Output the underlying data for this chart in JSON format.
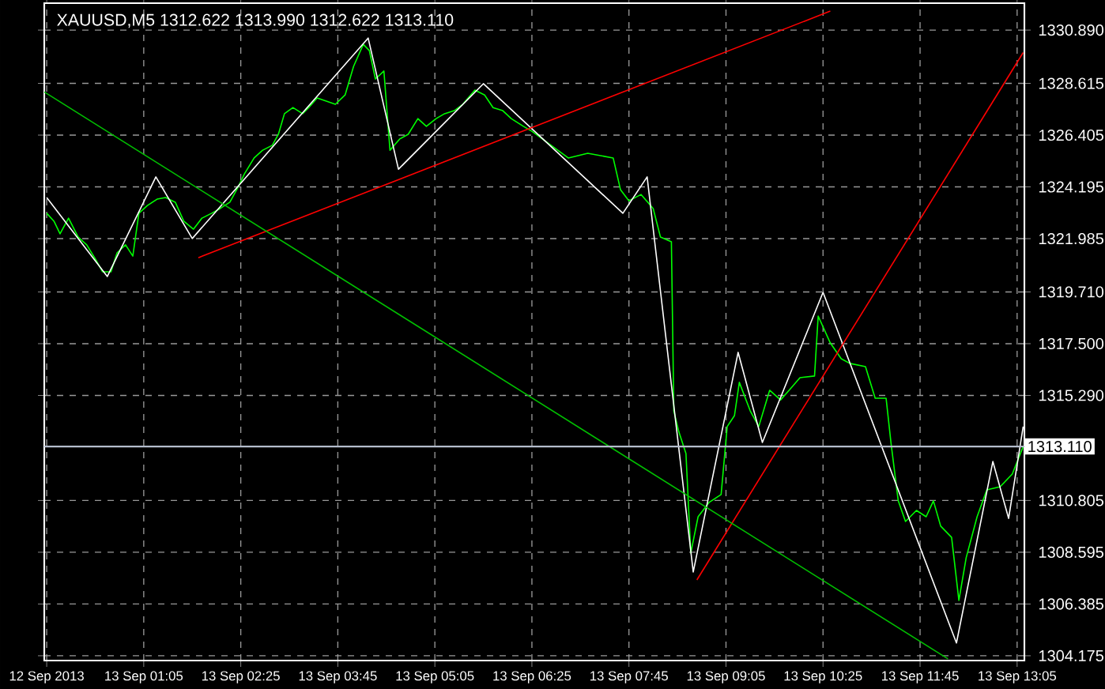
{
  "chart_data": {
    "type": "line",
    "title": "XAUUSD,M5  1312.622 1313.990 1312.622 1313.110",
    "xlim": [
      "2013-09-12T23:43",
      "2013-09-13T13:11"
    ],
    "ylim": [
      1303.97,
      1332.04
    ],
    "xticks": [
      {
        "value": "2013-09-12T23:45",
        "label": "12 Sep 2013"
      },
      {
        "value": "2013-09-13T01:05",
        "label": "13 Sep 01:05"
      },
      {
        "value": "2013-09-13T02:25",
        "label": "13 Sep 02:25"
      },
      {
        "value": "2013-09-13T03:45",
        "label": "13 Sep 03:45"
      },
      {
        "value": "2013-09-13T05:05",
        "label": "13 Sep 05:05"
      },
      {
        "value": "2013-09-13T06:25",
        "label": "13 Sep 06:25"
      },
      {
        "value": "2013-09-13T07:45",
        "label": "13 Sep 07:45"
      },
      {
        "value": "2013-09-13T09:05",
        "label": "13 Sep 09:05"
      },
      {
        "value": "2013-09-13T10:25",
        "label": "13 Sep 10:25"
      },
      {
        "value": "2013-09-13T11:45",
        "label": "13 Sep 11:45"
      },
      {
        "value": "2013-09-13T13:05",
        "label": "13 Sep 13:05"
      }
    ],
    "yticks": [
      {
        "value": 1330.89,
        "label": "1330.890"
      },
      {
        "value": 1328.615,
        "label": "1328.615"
      },
      {
        "value": 1326.405,
        "label": "1326.405"
      },
      {
        "value": 1324.195,
        "label": "1324.195"
      },
      {
        "value": 1321.985,
        "label": "1321.985"
      },
      {
        "value": 1319.71,
        "label": "1319.710"
      },
      {
        "value": 1317.5,
        "label": "1317.500"
      },
      {
        "value": 1315.29,
        "label": "1315.290"
      },
      {
        "value": 1310.805,
        "label": "1310.805"
      },
      {
        "value": 1308.595,
        "label": "1308.595"
      },
      {
        "value": 1306.385,
        "label": "1306.385"
      },
      {
        "value": 1304.175,
        "label": "1304.175"
      }
    ],
    "grid": true,
    "ref_lines": [
      {
        "axis": "y",
        "value": 1313.11,
        "label": "1313.110",
        "color": "#b4bccc"
      }
    ],
    "series": [
      {
        "color": "#00ff00",
        "x": [
          "2013-09-12T23:45",
          "2013-09-12T23:51",
          "2013-09-12T23:56",
          "2013-09-13T00:03",
          "2013-09-13T00:11",
          "2013-09-13T00:18",
          "2013-09-13T00:26",
          "2013-09-13T00:31",
          "2013-09-13T00:38",
          "2013-09-13T00:43",
          "2013-09-13T00:50",
          "2013-09-13T00:56",
          "2013-09-13T01:01",
          "2013-09-13T01:08",
          "2013-09-13T01:16",
          "2013-09-13T01:23",
          "2013-09-13T01:31",
          "2013-09-13T01:38",
          "2013-09-13T01:46",
          "2013-09-13T01:53",
          "2013-09-13T02:01",
          "2013-09-13T02:08",
          "2013-09-13T02:16",
          "2013-09-13T02:23",
          "2013-09-13T02:28",
          "2013-09-13T02:36",
          "2013-09-13T02:43",
          "2013-09-13T02:51",
          "2013-09-13T02:56",
          "2013-09-13T03:01",
          "2013-09-13T03:08",
          "2013-09-13T03:16",
          "2013-09-13T03:21",
          "2013-09-13T03:28",
          "2013-09-13T03:36",
          "2013-09-13T03:43",
          "2013-09-13T03:51",
          "2013-09-13T03:58",
          "2013-09-13T04:06",
          "2013-09-13T04:11",
          "2013-09-13T04:16",
          "2013-09-13T04:23",
          "2013-09-13T04:28",
          "2013-09-13T04:36",
          "2013-09-13T04:43",
          "2013-09-13T04:51",
          "2013-09-13T04:58",
          "2013-09-13T05:06",
          "2013-09-13T05:13",
          "2013-09-13T05:21",
          "2013-09-13T05:28",
          "2013-09-13T05:38",
          "2013-09-13T05:46",
          "2013-09-13T05:53",
          "2013-09-13T06:01",
          "2013-09-13T06:08",
          "2013-09-13T06:18",
          "2013-09-13T06:25",
          "2013-09-13T06:55",
          "2013-09-13T07:11",
          "2013-09-13T07:32",
          "2013-09-13T07:38",
          "2013-09-13T07:45",
          "2013-09-13T07:55",
          "2013-09-13T08:05",
          "2013-09-13T08:11",
          "2013-09-13T08:20",
          "2013-09-13T08:22",
          "2013-09-13T08:26",
          "2013-09-13T08:32",
          "2013-09-13T08:36",
          "2013-09-13T08:42",
          "2013-09-13T08:51",
          "2013-09-13T09:01",
          "2013-09-13T09:06",
          "2013-09-13T09:12",
          "2013-09-13T09:16",
          "2013-09-13T09:25",
          "2013-09-13T09:32",
          "2013-09-13T09:41",
          "2013-09-13T09:50",
          "2013-09-13T09:57",
          "2013-09-13T10:06",
          "2013-09-13T10:18",
          "2013-09-13T10:21",
          "2013-09-13T10:31",
          "2013-09-13T10:40",
          "2013-09-13T10:47",
          "2013-09-13T11:00",
          "2013-09-13T11:08",
          "2013-09-13T11:17",
          "2013-09-13T11:21",
          "2013-09-13T11:27",
          "2013-09-13T11:33",
          "2013-09-13T11:42",
          "2013-09-13T11:50",
          "2013-09-13T11:56",
          "2013-09-13T12:02",
          "2013-09-13T12:11",
          "2013-09-13T12:17",
          "2013-09-13T12:23",
          "2013-09-13T12:32",
          "2013-09-13T12:40",
          "2013-09-13T12:51",
          "2013-09-13T13:01",
          "2013-09-13T13:10"
        ],
        "values": [
          1323.07,
          1322.73,
          1322.19,
          1322.86,
          1322.05,
          1321.72,
          1321.04,
          1320.57,
          1320.57,
          1321.38,
          1321.72,
          1321.24,
          1323.07,
          1323.4,
          1323.67,
          1323.74,
          1323.54,
          1322.73,
          1322.39,
          1322.86,
          1323.07,
          1323.27,
          1323.54,
          1324.21,
          1324.75,
          1325.43,
          1325.76,
          1325.97,
          1326.44,
          1327.32,
          1327.58,
          1327.32,
          1327.58,
          1327.99,
          1327.85,
          1327.72,
          1328.12,
          1329.34,
          1330.28,
          1330.01,
          1328.8,
          1329.14,
          1325.76,
          1326.24,
          1326.44,
          1327.11,
          1326.78,
          1327.11,
          1327.32,
          1327.45,
          1327.72,
          1328.33,
          1328.12,
          1327.58,
          1327.45,
          1327.11,
          1326.78,
          1326.57,
          1325.43,
          1325.63,
          1325.43,
          1324.08,
          1323.6,
          1323.87,
          1323.27,
          1322.05,
          1321.85,
          1314.63,
          1313.76,
          1312.81,
          1308.56,
          1310.11,
          1310.72,
          1311.06,
          1313.96,
          1314.43,
          1315.85,
          1314.63,
          1313.96,
          1315.51,
          1315.1,
          1315.51,
          1316.05,
          1316.12,
          1318.68,
          1317.53,
          1316.86,
          1316.66,
          1316.52,
          1315.17,
          1315.17,
          1313.28,
          1310.79,
          1309.91,
          1310.38,
          1310.11,
          1310.79,
          1309.71,
          1309.23,
          1306.54,
          1308.36,
          1310.11,
          1311.26,
          1311.39,
          1311.93,
          1313.11
        ]
      },
      {
        "color": "#ffffff",
        "x": [
          "2013-09-12T23:45",
          "2013-09-13T00:35",
          "2013-09-13T01:15",
          "2013-09-13T01:45",
          "2013-09-13T04:10",
          "2013-09-13T04:35",
          "2013-09-13T05:45",
          "2013-09-13T07:40",
          "2013-09-13T08:00",
          "2013-09-13T08:38",
          "2013-09-13T09:15",
          "2013-09-13T09:35",
          "2013-09-13T10:25",
          "2013-09-13T12:15",
          "2013-09-13T12:45",
          "2013-09-13T12:58",
          "2013-09-13T13:10"
        ],
        "values": [
          1323.74,
          1320.37,
          1324.62,
          1321.99,
          1330.55,
          1324.95,
          1328.6,
          1323.07,
          1324.62,
          1307.75,
          1317.13,
          1313.28,
          1319.69,
          1304.72,
          1312.47,
          1310.04,
          1313.96
        ]
      },
      {
        "color": "#ff0000",
        "x": [
          "2013-09-13T01:50",
          "2013-09-13T10:31"
        ],
        "values": [
          1321.17,
          1331.7
        ]
      },
      {
        "color": "#ff0000",
        "x": [
          "2013-09-13T08:41",
          "2013-09-13T13:10"
        ],
        "values": [
          1307.41,
          1329.93
        ]
      },
      {
        "color": "#00c000",
        "x": [
          "2013-09-12T23:43",
          "2013-09-13T12:08"
        ],
        "values": [
          1328.25,
          1304.04
        ]
      }
    ]
  }
}
